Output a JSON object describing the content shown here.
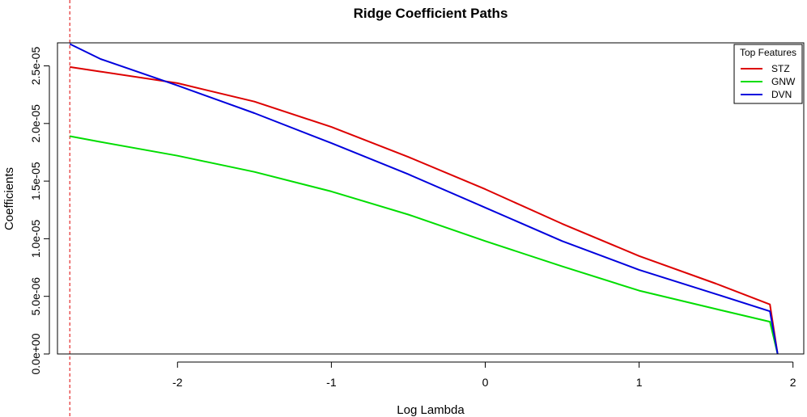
{
  "chart_data": {
    "type": "line",
    "title": "Ridge Coefficient Paths",
    "xlabel": "Log Lambda",
    "ylabel": "Coefficients",
    "xlim": [
      -2.78,
      2.07
    ],
    "ylim": [
      0,
      2.7e-05
    ],
    "x_ticks": [
      -2,
      -1,
      0,
      1,
      2
    ],
    "x_tick_labels": [
      "-2",
      "-1",
      "0",
      "1",
      "2"
    ],
    "y_ticks": [
      0,
      5e-06,
      1e-05,
      1.5e-05,
      2e-05,
      2.5e-05
    ],
    "y_tick_labels": [
      "0.0e+00",
      "5.0e-06",
      "1.0e-05",
      "1.5e-05",
      "2.0e-05",
      "2.5e-05"
    ],
    "vline": {
      "x": -2.7,
      "color": "#dd0000",
      "style": "dashed"
    },
    "legend": {
      "title": "Top Features",
      "position": "top-right"
    },
    "series": [
      {
        "name": "STZ",
        "color": "#dd0000",
        "x": [
          -2.7,
          -2.5,
          -2.0,
          -1.5,
          -1.0,
          -0.5,
          0.0,
          0.5,
          1.0,
          1.5,
          1.85,
          1.9
        ],
        "values": [
          2.49e-05,
          2.45e-05,
          2.35e-05,
          2.19e-05,
          1.97e-05,
          1.71e-05,
          1.43e-05,
          1.13e-05,
          8.5e-06,
          6.1e-06,
          4.3e-06,
          0.0
        ]
      },
      {
        "name": "GNW",
        "color": "#00dd00",
        "x": [
          -2.7,
          -2.5,
          -2.0,
          -1.5,
          -1.0,
          -0.5,
          0.0,
          0.5,
          1.0,
          1.5,
          1.85,
          1.9
        ],
        "values": [
          1.89e-05,
          1.84e-05,
          1.72e-05,
          1.58e-05,
          1.41e-05,
          1.21e-05,
          9.8e-06,
          7.6e-06,
          5.5e-06,
          3.9e-06,
          2.8e-06,
          0.0
        ]
      },
      {
        "name": "DVN",
        "color": "#0000dd",
        "x": [
          -2.7,
          -2.5,
          -2.0,
          -1.5,
          -1.0,
          -0.5,
          0.0,
          0.5,
          1.0,
          1.5,
          1.85,
          1.9
        ],
        "values": [
          2.69e-05,
          2.56e-05,
          2.33e-05,
          2.09e-05,
          1.83e-05,
          1.56e-05,
          1.27e-05,
          9.8e-06,
          7.3e-06,
          5.2e-06,
          3.7e-06,
          0.0
        ]
      }
    ]
  }
}
